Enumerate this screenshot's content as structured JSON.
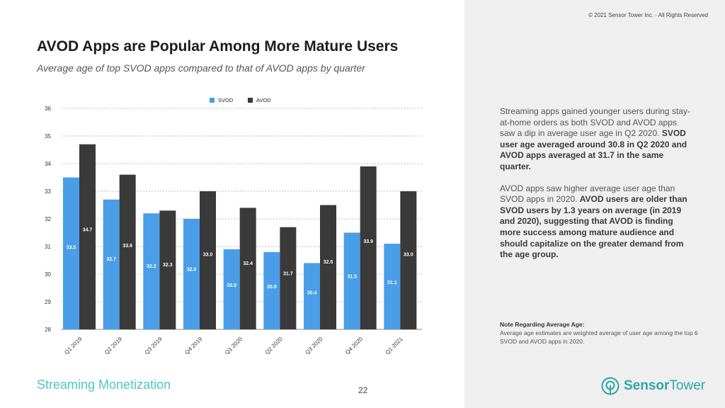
{
  "copyright": "© 2021 Sensor Tower Inc. - All Rights Reserved",
  "title": "AVOD Apps are Popular Among More Mature Users",
  "subtitle": "Average age of top SVOD apps compared to that of AVOD apps by quarter",
  "description": {
    "p1_plain": "Streaming apps gained younger users during stay-at-home orders as both SVOD and AVOD apps saw a dip in average user age in Q2 2020.",
    "p1_bold": "SVOD user age averaged around 30.8 in Q2 2020 and AVOD apps averaged at 31.7 in the same quarter.",
    "p2_plain": "AVOD apps saw higher average user age than SVOD apps in 2020.",
    "p2_bold": "AVOD users are older than SVOD users by 1.3 years on average (in 2019 and 2020), suggesting that AVOD is finding more success among mature audience and should capitalize on the greater demand from the age group."
  },
  "note": {
    "title": "Note Regarding Average Age:",
    "text": "Average age estimates are weighted average of user age among the top 6 SVOD and AVOD apps in 2020."
  },
  "footer": {
    "section": "Streaming Monetization",
    "page": "22",
    "logo_part1": "Sensor",
    "logo_part2": "Tower"
  },
  "colors": {
    "svod": "#4a9ee8",
    "avod": "#3a3a3a",
    "accent": "#4cc6c6",
    "logo": "#2aa8a6"
  },
  "chart_data": {
    "type": "bar",
    "categories": [
      "Q1 2019",
      "Q2 2019",
      "Q3 2019",
      "Q4 2019",
      "Q1 2020",
      "Q2 2020",
      "Q3 2020",
      "Q4 2020",
      "Q1 2021"
    ],
    "series": [
      {
        "name": "SVOD",
        "values": [
          33.5,
          32.7,
          32.2,
          32.0,
          30.9,
          30.8,
          30.4,
          31.5,
          31.1
        ]
      },
      {
        "name": "AVOD",
        "values": [
          34.7,
          33.6,
          32.3,
          33.0,
          32.4,
          31.7,
          32.5,
          33.9,
          33.0
        ]
      }
    ],
    "ylim": [
      28,
      36
    ],
    "yticks": [
      28,
      29,
      30,
      31,
      32,
      33,
      34,
      35,
      36
    ],
    "grid": true,
    "legend_position": "top-center",
    "xlabel": "",
    "ylabel": ""
  }
}
